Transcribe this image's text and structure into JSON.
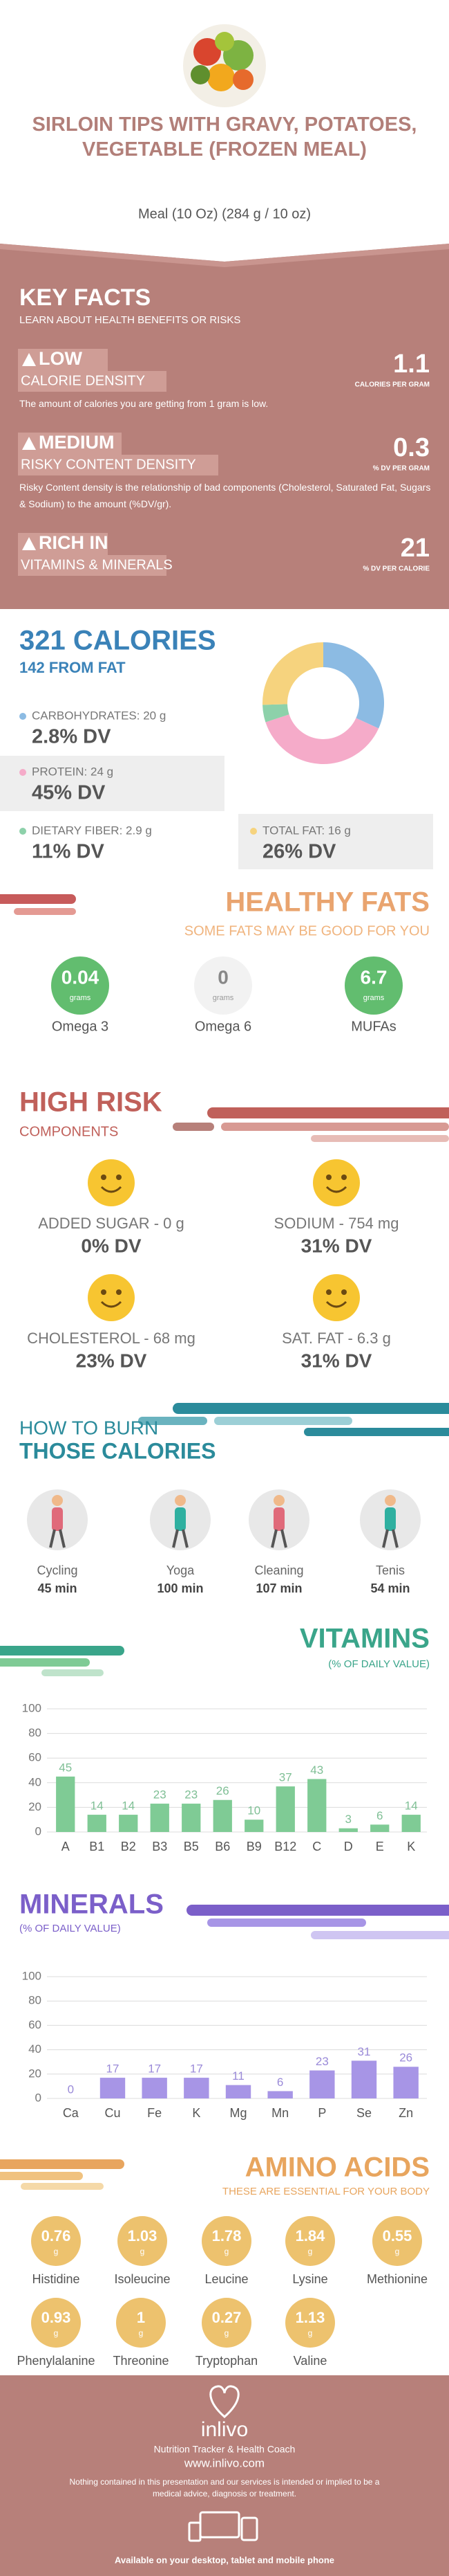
{
  "header": {
    "title": "SIRLOIN TIPS WITH GRAVY, POTATOES, VEGETABLE (FROZEN MEAL)",
    "subtitle": "Meal (10 Oz) (284 g / 10 oz)"
  },
  "key_facts": {
    "title": "KEY FACTS",
    "subtitle": "LEARN ABOUT HEALTH BENEFITS OR RISKS",
    "items": [
      {
        "level": "LOW",
        "name": "CALORIE DENSITY",
        "value": 1.1,
        "unit": "CALORIES PER GRAM",
        "description": "The amount of calories you are getting from 1 gram is low."
      },
      {
        "level": "MEDIUM",
        "name": "RISKY CONTENT DENSITY",
        "value": 0.3,
        "unit": "% DV PER GRAM",
        "description": "Risky Content density is the relationship of bad components (Cholesterol, Saturated Fat, Sugars & Sodium) to the amount (%DV/gr)."
      },
      {
        "level": "RICH  IN",
        "name": "VITAMINS & MINERALS",
        "value": 21,
        "unit": "% DV PER CALORIE"
      }
    ]
  },
  "chart_data": [
    {
      "type": "pie",
      "title": "321 CALORIES",
      "subtitle": "142 FROM FAT",
      "categories": [
        "CARBOHYDRATES: 20 g",
        "PROTEIN: 24 g",
        "DIETARY FIBER: 2.9 g",
        "TOTAL FAT: 16 g"
      ],
      "values": [
        20,
        24,
        2.9,
        16
      ],
      "dv": [
        "2.8% DV",
        "45% DV",
        "11% DV",
        "26% DV"
      ],
      "colors": [
        "#8cbbe3",
        "#f5abc9",
        "#8dd1aa",
        "#f6d37e"
      ]
    },
    {
      "type": "bar",
      "title": "VITAMINS",
      "subtitle": "(% OF DAILY VALUE)",
      "categories": [
        "A",
        "B1",
        "B2",
        "B3",
        "B5",
        "B6",
        "B9",
        "B12",
        "C",
        "D",
        "E",
        "K"
      ],
      "values": [
        45,
        14,
        14,
        23,
        23,
        26,
        10,
        37,
        43,
        3,
        6,
        14
      ],
      "color": "#7fcb95",
      "ylim": [
        0,
        100
      ],
      "yticks": [
        0,
        20,
        40,
        60,
        80,
        100
      ],
      "grid": true
    },
    {
      "type": "bar",
      "title": "MINERALS",
      "subtitle": "(% OF DAILY VALUE)",
      "categories": [
        "Ca",
        "Cu",
        "Fe",
        "K",
        "Mg",
        "Mn",
        "P",
        "Se",
        "Zn"
      ],
      "values": [
        0,
        17,
        17,
        17,
        11,
        6,
        23,
        31,
        26
      ],
      "color": "#a795e6",
      "ylim": [
        0,
        100
      ],
      "yticks": [
        0,
        20,
        40,
        60,
        80,
        100
      ],
      "grid": true
    }
  ],
  "healthy_fats": {
    "title": "HEALTHY FATS",
    "subtitle": "SOME FATS MAY BE GOOD FOR YOU",
    "items": [
      {
        "value": 0.04,
        "unit": "grams",
        "name": "Omega 3"
      },
      {
        "value": 0,
        "unit": "grams",
        "name": "Omega 6"
      },
      {
        "value": 6.7,
        "unit": "grams",
        "name": "MUFAs"
      }
    ]
  },
  "high_risk": {
    "title": "HIGH RISK",
    "subtitle": "COMPONENTS",
    "items": [
      {
        "label": "ADDED SUGAR - 0 g",
        "dv": "0% DV"
      },
      {
        "label": "SODIUM - 754 mg",
        "dv": "31% DV"
      },
      {
        "label": "CHOLESTEROL - 68 mg",
        "dv": "23% DV"
      },
      {
        "label": "SAT. FAT - 6.3 g",
        "dv": "31% DV"
      }
    ]
  },
  "burn": {
    "title_1": "HOW TO BURN",
    "title_2": "THOSE CALORIES",
    "activities": [
      {
        "name": "Cycling",
        "time": "45 min"
      },
      {
        "name": "Yoga",
        "time": "100 min"
      },
      {
        "name": "Cleaning",
        "time": "107 min"
      },
      {
        "name": "Tenis",
        "time": "54 min"
      }
    ]
  },
  "amino_acids": {
    "title": "AMINO ACIDS",
    "subtitle": "THESE ARE ESSENTIAL FOR YOUR BODY",
    "unit": "g",
    "items": [
      {
        "name": "Histidine",
        "value": 0.76
      },
      {
        "name": "Isoleucine",
        "value": 1.03
      },
      {
        "name": "Leucine",
        "value": 1.78
      },
      {
        "name": "Lysine",
        "value": 1.84
      },
      {
        "name": "Methionine",
        "value": 0.55
      },
      {
        "name": "Phenylalanine",
        "value": 0.93
      },
      {
        "name": "Threonine",
        "value": 1
      },
      {
        "name": "Tryptophan",
        "value": 0.27
      },
      {
        "name": "Valine",
        "value": 1.13
      }
    ]
  },
  "footer": {
    "brand": "inlivo",
    "tagline": "Nutrition Tracker & Health Coach",
    "url": "www.inlivo.com",
    "disclaimer": "Nothing contained in this presentation and our services is intended or implied to be a medical advice, diagnosis or treatment.",
    "platforms": "Available on your desktop, tablet and mobile phone"
  }
}
